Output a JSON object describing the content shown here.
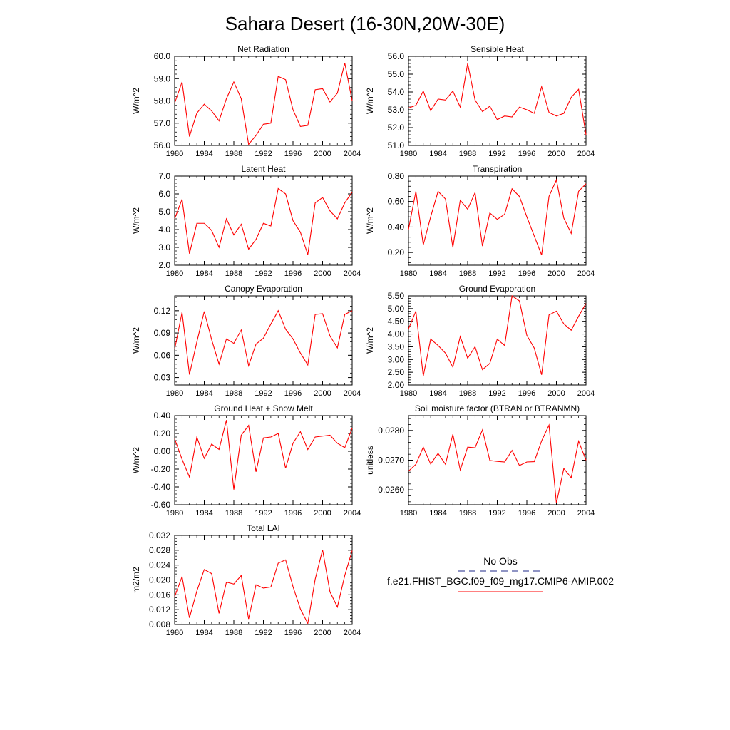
{
  "figure": {
    "title": "Sahara Desert (16-30N,20W-30E)",
    "line_color": "#ff0000",
    "obs_color": "#1f2a8a"
  },
  "legend": {
    "obs_label": "No Obs",
    "model_label": "f.e21.FHIST_BGC.f09_f09_mg17.CMIP6-AMIP.002"
  },
  "chart_data": [
    {
      "type": "line",
      "title": "Net Radiation",
      "ylabel": "W/m^2",
      "xlim": [
        1980,
        2004
      ],
      "ylim": [
        56.0,
        60.0
      ],
      "xticks": [
        1980,
        1984,
        1988,
        1992,
        1996,
        2000,
        2004
      ],
      "xtick_labels": [
        "1980",
        "1984",
        "1988",
        "1992",
        "1996",
        "2000",
        "2004"
      ],
      "yticks": [
        56.0,
        57.0,
        58.0,
        59.0,
        60.0
      ],
      "ytick_labels": [
        "56.0",
        "57.0",
        "58.0",
        "59.0",
        "60.0"
      ],
      "x": [
        1980,
        1981,
        1982,
        1983,
        1984,
        1985,
        1986,
        1987,
        1988,
        1989,
        1990,
        1991,
        1992,
        1993,
        1994,
        1995,
        1996,
        1997,
        1998,
        1999,
        2000,
        2001,
        2002,
        2003,
        2004
      ],
      "series": [
        {
          "values": [
            57.9,
            58.85,
            56.4,
            57.45,
            57.85,
            57.55,
            57.1,
            58.1,
            58.85,
            58.1,
            56.05,
            56.45,
            56.95,
            57.0,
            59.1,
            58.95,
            57.6,
            56.85,
            56.9,
            58.5,
            58.55,
            57.95,
            58.35,
            59.7,
            58.0
          ]
        }
      ]
    },
    {
      "type": "line",
      "title": "Sensible Heat",
      "ylabel": "W/m^2",
      "xlim": [
        1980,
        2004
      ],
      "ylim": [
        51.0,
        56.0
      ],
      "xticks": [
        1980,
        1984,
        1988,
        1992,
        1996,
        2000,
        2004
      ],
      "xtick_labels": [
        "1980",
        "1984",
        "1988",
        "1992",
        "1996",
        "2000",
        "2004"
      ],
      "yticks": [
        51.0,
        52.0,
        53.0,
        54.0,
        55.0,
        56.0
      ],
      "ytick_labels": [
        "51.0",
        "52.0",
        "53.0",
        "54.0",
        "55.0",
        "56.0"
      ],
      "x": [
        1980,
        1981,
        1982,
        1983,
        1984,
        1985,
        1986,
        1987,
        1988,
        1989,
        1990,
        1991,
        1992,
        1993,
        1994,
        1995,
        1996,
        1997,
        1998,
        1999,
        2000,
        2001,
        2002,
        2003,
        2004
      ],
      "series": [
        {
          "values": [
            53.1,
            53.25,
            54.05,
            52.95,
            53.6,
            53.55,
            54.05,
            53.15,
            55.6,
            53.55,
            52.9,
            53.2,
            52.45,
            52.65,
            52.6,
            53.15,
            53.0,
            52.8,
            54.3,
            52.85,
            52.65,
            52.8,
            53.7,
            54.15,
            51.6
          ]
        }
      ]
    },
    {
      "type": "line",
      "title": "Latent Heat",
      "ylabel": "W/m^2",
      "xlim": [
        1980,
        2004
      ],
      "ylim": [
        2.0,
        7.0
      ],
      "xticks": [
        1980,
        1984,
        1988,
        1992,
        1996,
        2000,
        2004
      ],
      "xtick_labels": [
        "1980",
        "1984",
        "1988",
        "1992",
        "1996",
        "2000",
        "2004"
      ],
      "yticks": [
        2.0,
        3.0,
        4.0,
        5.0,
        6.0,
        7.0
      ],
      "ytick_labels": [
        "2.0",
        "3.0",
        "4.0",
        "5.0",
        "6.0",
        "7.0"
      ],
      "x": [
        1980,
        1981,
        1982,
        1983,
        1984,
        1985,
        1986,
        1987,
        1988,
        1989,
        1990,
        1991,
        1992,
        1993,
        1994,
        1995,
        1996,
        1997,
        1998,
        1999,
        2000,
        2001,
        2002,
        2003,
        2004
      ],
      "series": [
        {
          "values": [
            4.6,
            5.7,
            2.65,
            4.35,
            4.35,
            3.95,
            3.0,
            4.6,
            3.7,
            4.3,
            2.9,
            3.45,
            4.35,
            4.2,
            6.3,
            6.0,
            4.5,
            3.85,
            2.6,
            5.5,
            5.8,
            5.05,
            4.6,
            5.5,
            6.1
          ]
        }
      ]
    },
    {
      "type": "line",
      "title": "Transpiration",
      "ylabel": "W/m^2",
      "xlim": [
        1980,
        2004
      ],
      "ylim": [
        0.1,
        0.8
      ],
      "xticks": [
        1980,
        1984,
        1988,
        1992,
        1996,
        2000,
        2004
      ],
      "xtick_labels": [
        "1980",
        "1984",
        "1988",
        "1992",
        "1996",
        "2000",
        "2004"
      ],
      "yticks": [
        0.2,
        0.4,
        0.6,
        0.8
      ],
      "ytick_labels": [
        "0.20",
        "0.40",
        "0.60",
        "0.80"
      ],
      "x": [
        1980,
        1981,
        1982,
        1983,
        1984,
        1985,
        1986,
        1987,
        1988,
        1989,
        1990,
        1991,
        1992,
        1993,
        1994,
        1995,
        1996,
        1997,
        1998,
        1999,
        2000,
        2001,
        2002,
        2003,
        2004
      ],
      "series": [
        {
          "values": [
            0.38,
            0.68,
            0.26,
            0.48,
            0.68,
            0.62,
            0.24,
            0.61,
            0.54,
            0.67,
            0.25,
            0.51,
            0.46,
            0.5,
            0.7,
            0.64,
            0.48,
            0.33,
            0.18,
            0.64,
            0.77,
            0.47,
            0.35,
            0.68,
            0.74
          ]
        }
      ]
    },
    {
      "type": "line",
      "title": "Canopy Evaporation",
      "ylabel": "W/m^2",
      "xlim": [
        1980,
        2004
      ],
      "ylim": [
        0.02,
        0.14
      ],
      "xticks": [
        1980,
        1984,
        1988,
        1992,
        1996,
        2000,
        2004
      ],
      "xtick_labels": [
        "1980",
        "1984",
        "1988",
        "1992",
        "1996",
        "2000",
        "2004"
      ],
      "yticks": [
        0.03,
        0.06,
        0.09,
        0.12
      ],
      "ytick_labels": [
        "0.03",
        "0.06",
        "0.09",
        "0.12"
      ],
      "x": [
        1980,
        1981,
        1982,
        1983,
        1984,
        1985,
        1986,
        1987,
        1988,
        1989,
        1990,
        1991,
        1992,
        1993,
        1994,
        1995,
        1996,
        1997,
        1998,
        1999,
        2000,
        2001,
        2002,
        2003,
        2004
      ],
      "series": [
        {
          "values": [
            0.068,
            0.118,
            0.034,
            0.078,
            0.119,
            0.081,
            0.048,
            0.082,
            0.076,
            0.094,
            0.046,
            0.075,
            0.083,
            0.102,
            0.12,
            0.095,
            0.082,
            0.063,
            0.047,
            0.115,
            0.116,
            0.086,
            0.07,
            0.115,
            0.12
          ]
        }
      ]
    },
    {
      "type": "line",
      "title": "Ground Evaporation",
      "ylabel": "W/m^2",
      "xlim": [
        1980,
        2004
      ],
      "ylim": [
        2.0,
        5.5
      ],
      "xticks": [
        1980,
        1984,
        1988,
        1992,
        1996,
        2000,
        2004
      ],
      "xtick_labels": [
        "1980",
        "1984",
        "1988",
        "1992",
        "1996",
        "2000",
        "2004"
      ],
      "yticks": [
        2.0,
        2.5,
        3.0,
        3.5,
        4.0,
        4.5,
        5.0,
        5.5
      ],
      "ytick_labels": [
        "2.00",
        "2.50",
        "3.00",
        "3.50",
        "4.00",
        "4.50",
        "5.00",
        "5.50"
      ],
      "x": [
        1980,
        1981,
        1982,
        1983,
        1984,
        1985,
        1986,
        1987,
        1988,
        1989,
        1990,
        1991,
        1992,
        1993,
        1994,
        1995,
        1996,
        1997,
        1998,
        1999,
        2000,
        2001,
        2002,
        2003,
        2004
      ],
      "series": [
        {
          "values": [
            4.2,
            4.9,
            2.35,
            3.8,
            3.55,
            3.25,
            2.7,
            3.9,
            3.05,
            3.5,
            2.6,
            2.85,
            3.8,
            3.55,
            5.5,
            5.3,
            3.95,
            3.45,
            2.4,
            4.75,
            4.9,
            4.4,
            4.15,
            4.7,
            5.2
          ]
        }
      ]
    },
    {
      "type": "line",
      "title": "Ground Heat + Snow Melt",
      "ylabel": "W/m^2",
      "xlim": [
        1980,
        2004
      ],
      "ylim": [
        -0.6,
        0.4
      ],
      "xticks": [
        1980,
        1984,
        1988,
        1992,
        1996,
        2000,
        2004
      ],
      "xtick_labels": [
        "1980",
        "1984",
        "1988",
        "1992",
        "1996",
        "2000",
        "2004"
      ],
      "yticks": [
        -0.6,
        -0.4,
        -0.2,
        0.0,
        0.2,
        0.4
      ],
      "ytick_labels": [
        "-0.60",
        "-0.40",
        "-0.20",
        "0.00",
        "0.20",
        "0.40"
      ],
      "x": [
        1980,
        1981,
        1982,
        1983,
        1984,
        1985,
        1986,
        1987,
        1988,
        1989,
        1990,
        1991,
        1992,
        1993,
        1994,
        1995,
        1996,
        1997,
        1998,
        1999,
        2000,
        2001,
        2002,
        2003,
        2004
      ],
      "series": [
        {
          "values": [
            0.14,
            -0.09,
            -0.29,
            0.16,
            -0.08,
            0.08,
            0.02,
            0.35,
            -0.43,
            0.18,
            0.29,
            -0.23,
            0.15,
            0.16,
            0.2,
            -0.19,
            0.09,
            0.22,
            0.02,
            0.16,
            0.17,
            0.18,
            0.09,
            0.04,
            0.26
          ]
        }
      ]
    },
    {
      "type": "line",
      "title": "Soil moisture factor (BTRAN or BTRANMN)",
      "ylabel": "unitless",
      "xlim": [
        1980,
        2004
      ],
      "ylim": [
        0.0255,
        0.0285
      ],
      "xticks": [
        1980,
        1984,
        1988,
        1992,
        1996,
        2000,
        2004
      ],
      "xtick_labels": [
        "1980",
        "1984",
        "1988",
        "1992",
        "1996",
        "2000",
        "2004"
      ],
      "yticks": [
        0.026,
        0.027,
        0.028
      ],
      "ytick_labels": [
        "0.0260",
        "0.0270",
        "0.0280"
      ],
      "x": [
        1980,
        1981,
        1982,
        1983,
        1984,
        1985,
        1986,
        1987,
        1988,
        1989,
        1990,
        1991,
        1992,
        1993,
        1994,
        1995,
        1996,
        1997,
        1998,
        1999,
        2000,
        2001,
        2002,
        2003,
        2004
      ],
      "series": [
        {
          "values": [
            0.02663,
            0.02686,
            0.02744,
            0.02687,
            0.02723,
            0.02686,
            0.02787,
            0.02667,
            0.02744,
            0.02742,
            0.02802,
            0.02699,
            0.02696,
            0.02694,
            0.02733,
            0.02682,
            0.02694,
            0.02695,
            0.02765,
            0.02818,
            0.02555,
            0.02672,
            0.02641,
            0.02764,
            0.027
          ]
        }
      ]
    },
    {
      "type": "line",
      "title": "Total LAI",
      "ylabel": "m2/m2",
      "xlim": [
        1980,
        2004
      ],
      "ylim": [
        0.008,
        0.032
      ],
      "xticks": [
        1980,
        1984,
        1988,
        1992,
        1996,
        2000,
        2004
      ],
      "xtick_labels": [
        "1980",
        "1984",
        "1988",
        "1992",
        "1996",
        "2000",
        "2004"
      ],
      "yticks": [
        0.008,
        0.012,
        0.016,
        0.02,
        0.024,
        0.028,
        0.032
      ],
      "ytick_labels": [
        "0.008",
        "0.012",
        "0.016",
        "0.020",
        "0.024",
        "0.028",
        "0.032"
      ],
      "x": [
        1980,
        1981,
        1982,
        1983,
        1984,
        1985,
        1986,
        1987,
        1988,
        1989,
        1990,
        1991,
        1992,
        1993,
        1994,
        1995,
        1996,
        1997,
        1998,
        1999,
        2000,
        2001,
        2002,
        2003,
        2004
      ],
      "series": [
        {
          "values": [
            0.0155,
            0.0209,
            0.0098,
            0.017,
            0.0228,
            0.0217,
            0.011,
            0.0194,
            0.0189,
            0.0212,
            0.0095,
            0.0187,
            0.0178,
            0.0181,
            0.0245,
            0.0254,
            0.0182,
            0.0122,
            0.0083,
            0.0202,
            0.0281,
            0.0168,
            0.0127,
            0.0212,
            0.0279
          ]
        }
      ]
    }
  ]
}
